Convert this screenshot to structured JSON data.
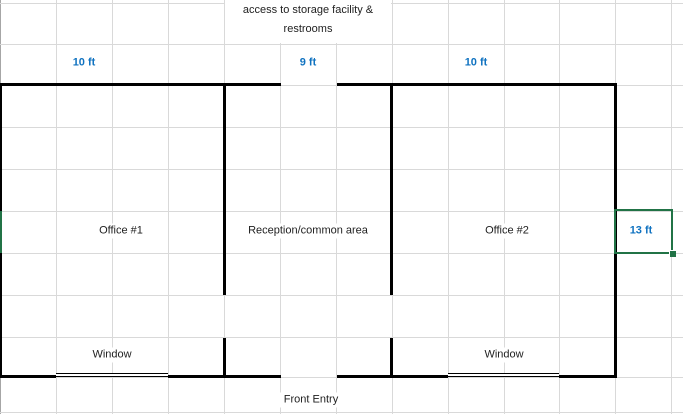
{
  "floor_plan": {
    "top_access_label": "access to storage facility &\nrestrooms",
    "dimensions": {
      "office1_width": "10 ft",
      "reception_width": "9 ft",
      "office2_width": "10 ft",
      "building_depth": "13 ft"
    },
    "rooms": {
      "office1": "Office #1",
      "reception": "Reception/common area",
      "office2": "Office #2"
    },
    "windows": {
      "left": "Window",
      "right": "Window"
    },
    "front_entry": "Front Entry",
    "colors": {
      "dimension_text": "#0F72C0",
      "selection_border": "#217346",
      "wall": "#000000",
      "gridline": "#D9D9D9"
    }
  }
}
